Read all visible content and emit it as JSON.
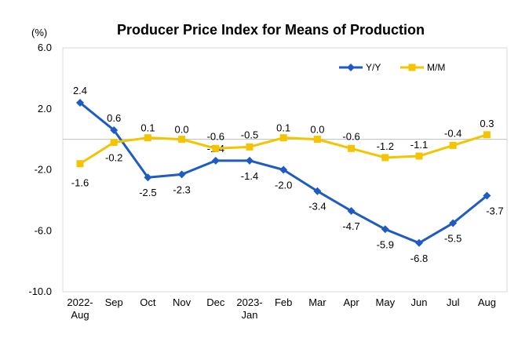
{
  "chart_data": {
    "type": "line",
    "title": "Producer Price Index for Means of Production",
    "unit_label": "(%)",
    "xlabel": "",
    "ylabel": "",
    "ylim": [
      -10.0,
      6.0
    ],
    "y_ticks": [
      "6.0",
      "2.0",
      "-2.0",
      "-6.0",
      "-10.0"
    ],
    "y_tick_values": [
      6,
      2,
      -2,
      -6,
      -10
    ],
    "categories": [
      [
        "2022-",
        "Aug"
      ],
      [
        "Sep"
      ],
      [
        "Oct"
      ],
      [
        "Nov"
      ],
      [
        "Dec"
      ],
      [
        "2023-",
        "Jan"
      ],
      [
        "Feb"
      ],
      [
        "Mar"
      ],
      [
        "Apr"
      ],
      [
        "May"
      ],
      [
        "Jun"
      ],
      [
        "Jul"
      ],
      [
        "Aug"
      ]
    ],
    "baseline": 0,
    "grid": false,
    "legend_position": "top-right",
    "series": [
      {
        "name": "Y/Y",
        "color": "#1f5bc4",
        "marker": "diamond",
        "values": [
          2.4,
          0.6,
          -2.5,
          -2.3,
          -1.4,
          -1.4,
          -2.0,
          -3.4,
          -4.7,
          -5.9,
          -6.8,
          -5.5,
          -3.7
        ],
        "labels": [
          "2.4",
          "0.6",
          "-2.5",
          "-2.3",
          "-1.4",
          "-1.4",
          "-2.0",
          "-3.4",
          "-4.7",
          "-5.9",
          "-6.8",
          "-5.5",
          "-3.7"
        ]
      },
      {
        "name": "M/M",
        "color": "#f5c400",
        "marker": "square",
        "values": [
          -1.6,
          -0.2,
          0.1,
          0.0,
          -0.6,
          -0.5,
          0.1,
          0.0,
          -0.6,
          -1.2,
          -1.1,
          -0.4,
          0.3
        ],
        "labels": [
          "-1.6",
          "-0.2",
          "0.1",
          "0.0",
          "-0.6",
          "-0.5",
          "0.1",
          "0.0",
          "-0.6",
          "-1.2",
          "-1.1",
          "-0.4",
          "0.3"
        ]
      }
    ]
  }
}
